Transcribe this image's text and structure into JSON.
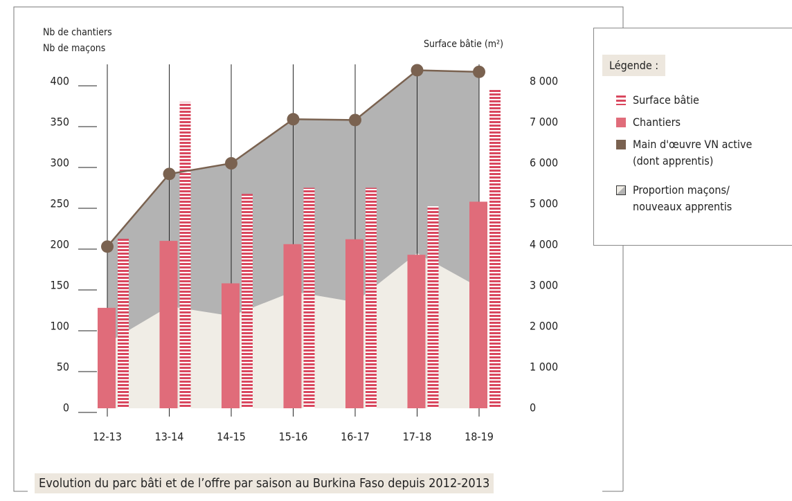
{
  "chart_data": {
    "type": "bar",
    "title": "Evolution du parc bâti et de l’offre par saison au Burkina Faso depuis 2012-2013",
    "ylabel": [
      "Nb de chantiers",
      "Nb de maçons"
    ],
    "y2label": "Surface bâtie (m²)",
    "legend_title": "Légende :",
    "categories": [
      "12-13",
      "13-14",
      "14-15",
      "15-16",
      "16-17",
      "17-18",
      "18-19"
    ],
    "ylim": [
      0,
      400
    ],
    "yticks": [
      0,
      50,
      100,
      150,
      200,
      250,
      300,
      350,
      400
    ],
    "y2lim": [
      0,
      8000
    ],
    "y2ticks": [
      0,
      {
        "value": 1000,
        "label": "1 000"
      },
      {
        "value": 2000,
        "label": "2 000"
      },
      {
        "value": 3000,
        "label": "3 000"
      },
      {
        "value": 4000,
        "label": "4 000"
      },
      {
        "value": 5000,
        "label": "5 000"
      },
      {
        "value": 6000,
        "label": "6 000"
      },
      {
        "value": 7000,
        "label": "7 000"
      },
      {
        "value": 8000,
        "label": "8 000"
      }
    ],
    "series": [
      {
        "name": "Surface bâtie",
        "type": "striped-bar",
        "axis": "y2",
        "color": "#d9475e",
        "values": [
          4150,
          7500,
          5250,
          5400,
          5400,
          4950,
          7800
        ]
      },
      {
        "name": "Chantiers",
        "type": "bar",
        "color": "#e06c7a",
        "values": [
          123,
          205,
          153,
          201,
          207,
          188,
          253
        ]
      },
      {
        "name": "Main d'œuvre VN active (dont apprentis)",
        "type": "line",
        "color": "#7a6250",
        "area_color": "#b3b3b3",
        "values": [
          198,
          287,
          300,
          354,
          353,
          414,
          412
        ]
      },
      {
        "name": "Proportion maçons/ nouveaux apprentis",
        "type": "area",
        "color": "#f0ede6",
        "values": [
          80,
          125,
          113,
          143,
          130,
          190,
          148
        ]
      }
    ]
  }
}
